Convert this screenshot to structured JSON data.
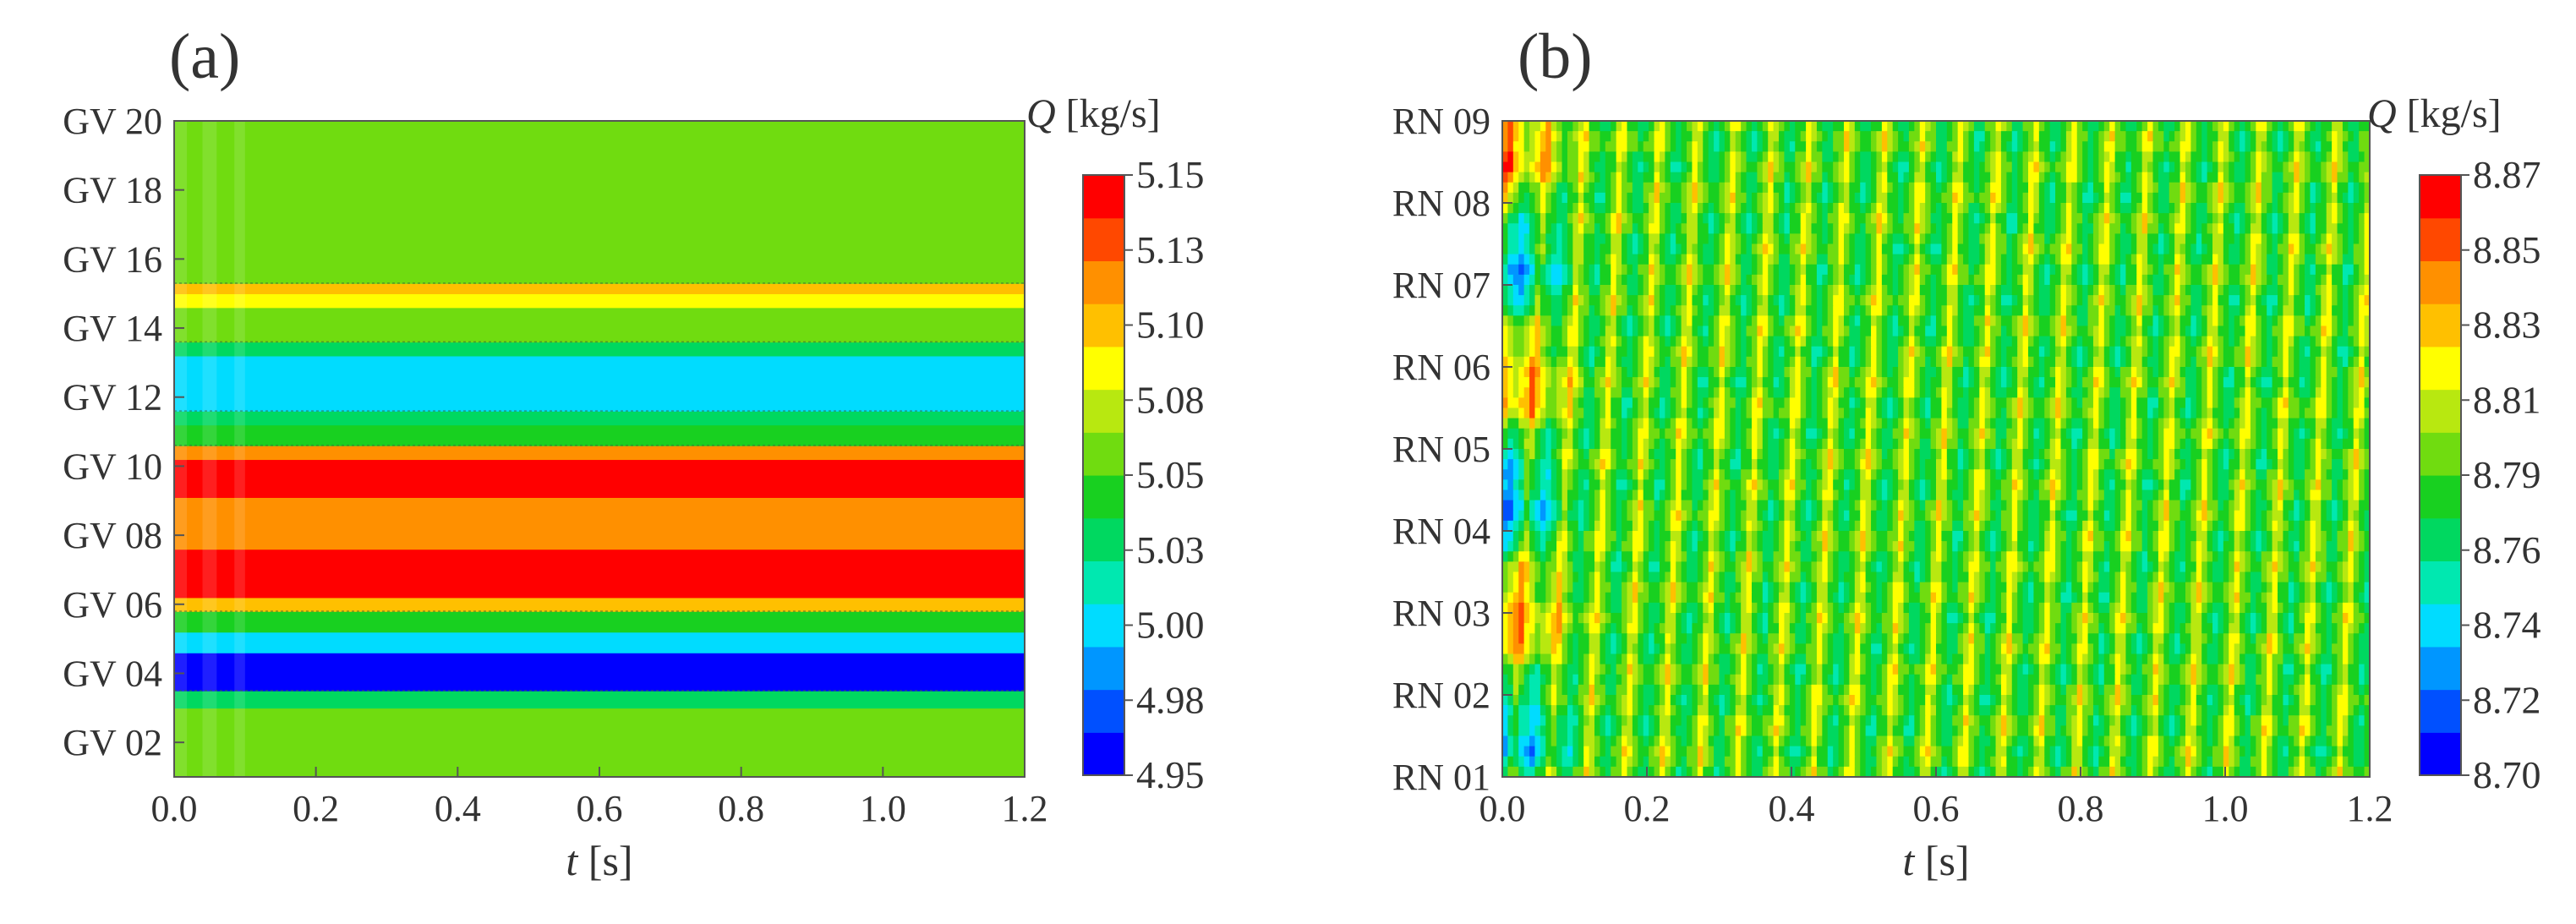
{
  "chart_data": [
    {
      "type": "heatmap",
      "panel_label": "(a)",
      "xlabel_var": "t",
      "xlabel_unit": " [s]",
      "x_ticks": [
        "0.0",
        "0.2",
        "0.4",
        "0.6",
        "0.8",
        "1.0",
        "1.2"
      ],
      "xlim": [
        0,
        1.2
      ],
      "y_ticks": [
        "GV 02",
        "GV 04",
        "GV 06",
        "GV 08",
        "GV 10",
        "GV 12",
        "GV 14",
        "GV 16",
        "GV 18",
        "GV 20"
      ],
      "ylim": [
        1,
        20
      ],
      "colorbar_var": "Q",
      "colorbar_unit": " [kg/s]",
      "colorbar_ticks": [
        "5.15",
        "5.13",
        "5.10",
        "5.08",
        "5.05",
        "5.03",
        "5.00",
        "4.98",
        "4.95"
      ],
      "colorbar_range": [
        4.95,
        5.15
      ],
      "bands": [
        {
          "from": 1,
          "to": 3.0,
          "value": 5.06
        },
        {
          "from": 3.0,
          "to": 3.5,
          "value": 5.03
        },
        {
          "from": 3.5,
          "to": 4.6,
          "value": 4.955
        },
        {
          "from": 4.6,
          "to": 5.2,
          "value": 5.0
        },
        {
          "from": 5.2,
          "to": 5.8,
          "value": 5.05
        },
        {
          "from": 5.8,
          "to": 6.2,
          "value": 5.1
        },
        {
          "from": 6.2,
          "to": 7.6,
          "value": 5.15
        },
        {
          "from": 7.6,
          "to": 9.1,
          "value": 5.115
        },
        {
          "from": 9.1,
          "to": 10.2,
          "value": 5.145
        },
        {
          "from": 10.2,
          "to": 10.6,
          "value": 5.12
        },
        {
          "from": 10.6,
          "to": 11.2,
          "value": 5.05
        },
        {
          "from": 11.2,
          "to": 11.6,
          "value": 5.03
        },
        {
          "from": 11.6,
          "to": 13.2,
          "value": 5.005
        },
        {
          "from": 13.2,
          "to": 13.6,
          "value": 5.03
        },
        {
          "from": 13.6,
          "to": 14.6,
          "value": 5.06
        },
        {
          "from": 14.6,
          "to": 15.0,
          "value": 5.09
        },
        {
          "from": 15.0,
          "to": 15.3,
          "value": 5.1
        },
        {
          "from": 15.3,
          "to": 20,
          "value": 5.06
        }
      ]
    },
    {
      "type": "heatmap",
      "panel_label": "(b)",
      "xlabel_var": "t",
      "xlabel_unit": " [s]",
      "x_ticks": [
        "0.0",
        "0.2",
        "0.4",
        "0.6",
        "0.8",
        "1.0",
        "1.2"
      ],
      "xlim": [
        0,
        1.2
      ],
      "y_ticks": [
        "RN 01",
        "RN 02",
        "RN 03",
        "RN 04",
        "RN 05",
        "RN 06",
        "RN 07",
        "RN 08",
        "RN 09"
      ],
      "ylim": [
        1,
        9
      ],
      "colorbar_var": "Q",
      "colorbar_unit": " [kg/s]",
      "colorbar_ticks": [
        "8.87",
        "8.85",
        "8.83",
        "8.81",
        "8.79",
        "8.76",
        "8.74",
        "8.72",
        "8.70"
      ],
      "colorbar_range": [
        8.7,
        8.87
      ],
      "pattern": {
        "description_free": true,
        "mean": 8.785,
        "amplitude": 0.06,
        "stripe_period_s": 0.052,
        "stripe_drift_s": 0.05
      }
    }
  ],
  "palette": [
    "#0000ff",
    "#0050ff",
    "#0096ff",
    "#00dcff",
    "#00e8b0",
    "#00d860",
    "#18d020",
    "#70dc10",
    "#b8e810",
    "#ffff00",
    "#ffc000",
    "#ff9000",
    "#ff4800",
    "#ff0000"
  ]
}
